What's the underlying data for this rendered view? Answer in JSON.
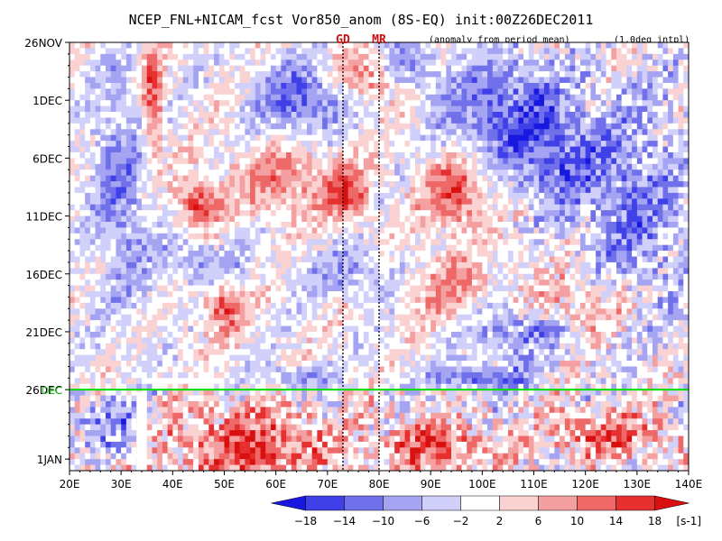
{
  "chart_data": {
    "type": "heatmap",
    "title": "NCEP_FNL+NICAM_fcst Vor850_anom (8S-EQ) init:00Z26DEC2011",
    "subtitle_left": "(anomaly from period mean)",
    "subtitle_right": "(1.0deg intpl)",
    "x_ticks": [
      "20E",
      "30E",
      "40E",
      "50E",
      "60E",
      "70E",
      "80E",
      "90E",
      "100E",
      "110E",
      "120E",
      "130E",
      "140E"
    ],
    "xlim": [
      20,
      140
    ],
    "y_ticks": [
      "26NOV",
      "1DEC",
      "6DEC",
      "11DEC",
      "16DEC",
      "21DEC",
      "26DEC",
      "1JAN"
    ],
    "ylim_days": [
      "26NOV",
      "2JAN"
    ],
    "markers": [
      {
        "label": "GD",
        "lon": 73
      },
      {
        "label": "MR",
        "lon": 80
      }
    ],
    "init_line": {
      "label": "26DEC",
      "color": "#00dd00"
    },
    "colorbar": {
      "levels": [
        -18,
        -14,
        -10,
        -6,
        -2,
        2,
        6,
        10,
        14,
        18
      ],
      "labels": [
        "−18",
        "−14",
        "−10",
        "−6",
        "−2",
        "2",
        "6",
        "10",
        "14",
        "18"
      ],
      "colors": [
        "#1818e0",
        "#4040e8",
        "#7070ea",
        "#a4a4f2",
        "#d0d0fa",
        "#ffffff",
        "#fad2d2",
        "#f4a0a0",
        "#ee6868",
        "#e63030",
        "#d81010"
      ],
      "unit": "[s-1]"
    }
  }
}
